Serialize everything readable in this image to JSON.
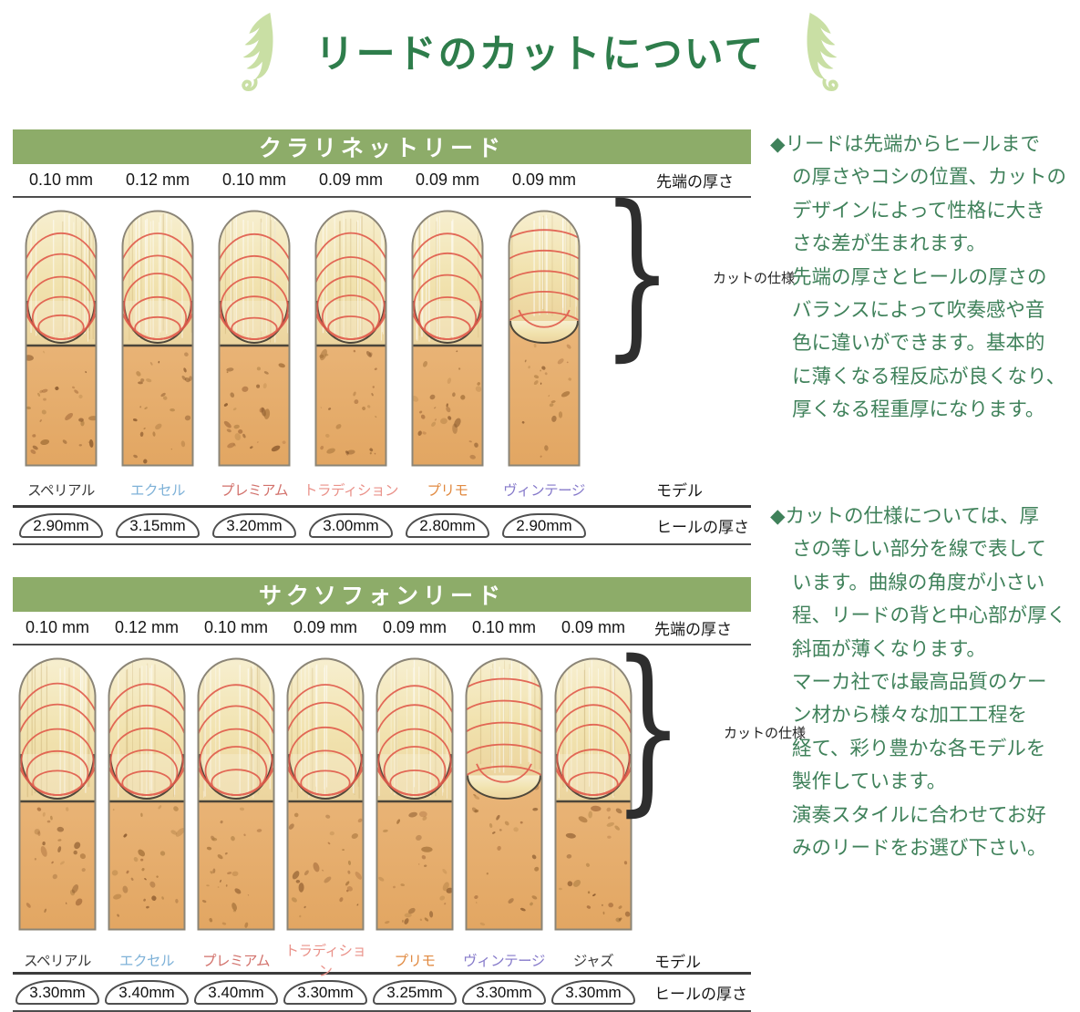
{
  "title": "リードのカットについて",
  "labels": {
    "tip": "先端の厚さ",
    "model": "モデル",
    "heel": "ヒールの厚さ",
    "cut_spec": "カットの仕様"
  },
  "colors": {
    "band_green": "#8dac69",
    "title_green": "#2e7d4b",
    "note_green": "#3f815a",
    "leaf_green": "#c9dfa4",
    "contour_red": "#e05a4b",
    "vamp_cream": "#f1e2ae",
    "bark_tan": "#e8b274"
  },
  "sections": [
    {
      "id": "clarinet",
      "heading": "クラリネットリード",
      "reeds": [
        {
          "tip": "0.10 mm",
          "model": "スペリアル",
          "model_color": "#3a3a3a",
          "heel": "2.90mm",
          "cut": "deep"
        },
        {
          "tip": "0.12 mm",
          "model": "エクセル",
          "model_color": "#7fb2d8",
          "heel": "3.15mm",
          "cut": "deep"
        },
        {
          "tip": "0.10 mm",
          "model": "プレミアム",
          "model_color": "#d2716b",
          "heel": "3.20mm",
          "cut": "deep"
        },
        {
          "tip": "0.09 mm",
          "model": "トラディション",
          "model_color": "#ea928a",
          "heel": "3.00mm",
          "cut": "deep"
        },
        {
          "tip": "0.09 mm",
          "model": "プリモ",
          "model_color": "#e18a41",
          "heel": "2.80mm",
          "cut": "deep"
        },
        {
          "tip": "0.09 mm",
          "model": "ヴィンテージ",
          "model_color": "#8579ca",
          "heel": "2.90mm",
          "cut": "shallow"
        }
      ]
    },
    {
      "id": "saxophone",
      "heading": "サクソフォンリード",
      "reeds": [
        {
          "tip": "0.10 mm",
          "model": "スペリアル",
          "model_color": "#3a3a3a",
          "heel": "3.30mm",
          "cut": "deep"
        },
        {
          "tip": "0.12 mm",
          "model": "エクセル",
          "model_color": "#7fb2d8",
          "heel": "3.40mm",
          "cut": "deep"
        },
        {
          "tip": "0.10 mm",
          "model": "プレミアム",
          "model_color": "#d2716b",
          "heel": "3.40mm",
          "cut": "deep"
        },
        {
          "tip": "0.09 mm",
          "model": "トラディション",
          "model_color": "#ea928a",
          "heel": "3.30mm",
          "cut": "deep"
        },
        {
          "tip": "0.09 mm",
          "model": "プリモ",
          "model_color": "#e18a41",
          "heel": "3.25mm",
          "cut": "deep"
        },
        {
          "tip": "0.10 mm",
          "model": "ヴィンテージ",
          "model_color": "#8579ca",
          "heel": "3.30mm",
          "cut": "shallow"
        },
        {
          "tip": "0.09 mm",
          "model": "ジャズ",
          "model_color": "#3a3a3a",
          "heel": "3.30mm",
          "cut": "deep"
        }
      ]
    }
  ],
  "notes": [
    "◆リードは先端からヒールまで\nの厚さやコシの位置、カットの\nデザインによって性格に大き\nさな差が生まれます。\n先端の厚さとヒールの厚さの\nバランスによって吹奏感や音\n色に違いができます。基本的\nに薄くなる程反応が良くなり、\n厚くなる程重厚になります。",
    "◆カットの仕様については、厚\nさの等しい部分を線で表して\nいます。曲線の角度が小さい\n程、リードの背と中心部が厚く\n斜面が薄くなります。\nマーカ社では最高品質のケー\nン材から様々な加工工程を\n経て、彩り豊かな各モデルを\n製作しています。\n演奏スタイルに合わせてお好\nみのリードをお選び下さい。"
  ]
}
